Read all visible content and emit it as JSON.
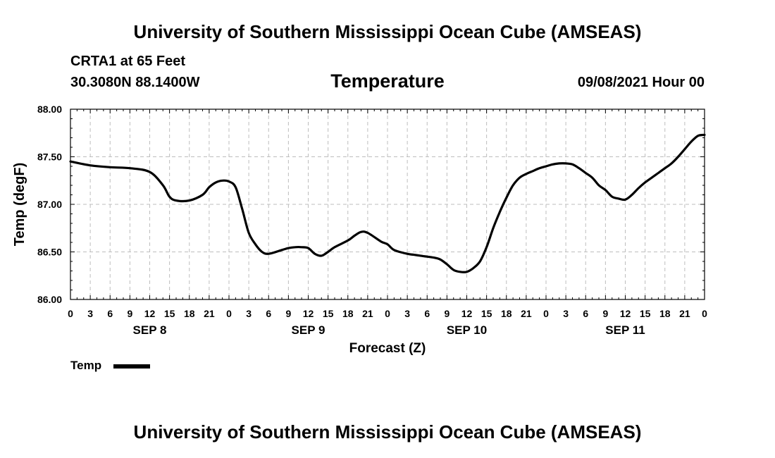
{
  "header": {
    "top_title": "University of Southern Mississippi Ocean Cube (AMSEAS)",
    "bottom_title": "University of Southern Mississippi Ocean Cube (AMSEAS)",
    "station": "CRTA1 at 65 Feet",
    "coords": "30.3080N  88.1400W",
    "datetime": "09/08/2021 Hour 00"
  },
  "chart_data": {
    "type": "line",
    "title": "Temperature",
    "xlabel": "Forecast (Z)",
    "ylabel": "Temp (degF)",
    "xlim": [
      0,
      96
    ],
    "ylim": [
      86.0,
      88.0
    ],
    "y_ticks": [
      86.0,
      86.5,
      87.0,
      87.5,
      88.0
    ],
    "y_tick_labels": [
      "86.00",
      "86.50",
      "87.00",
      "87.50",
      "88.00"
    ],
    "x_ticks": [
      0,
      3,
      6,
      9,
      12,
      15,
      18,
      21,
      24,
      27,
      30,
      33,
      36,
      39,
      42,
      45,
      48,
      51,
      54,
      57,
      60,
      63,
      66,
      69,
      72,
      75,
      78,
      81,
      84,
      87,
      90,
      93,
      96
    ],
    "x_tick_labels": [
      "0",
      "3",
      "6",
      "9",
      "12",
      "15",
      "18",
      "21",
      "0",
      "3",
      "6",
      "9",
      "12",
      "15",
      "18",
      "21",
      "0",
      "3",
      "6",
      "9",
      "12",
      "15",
      "18",
      "21",
      "0",
      "3",
      "6",
      "9",
      "12",
      "15",
      "18",
      "21",
      "0"
    ],
    "day_labels": [
      {
        "text": "SEP 8",
        "x": 12
      },
      {
        "text": "SEP 9",
        "x": 36
      },
      {
        "text": "SEP 10",
        "x": 60
      },
      {
        "text": "SEP 11",
        "x": 84
      }
    ],
    "grid": true,
    "series": [
      {
        "name": "Temp",
        "color": "#000000",
        "x": [
          0,
          3,
          6,
          9,
          12,
          14,
          15,
          16,
          18,
          20,
          21,
          22,
          23,
          24,
          25,
          26,
          27,
          28,
          29,
          30,
          32,
          33,
          34,
          35,
          36,
          37,
          38,
          39,
          40,
          42,
          43,
          44,
          45,
          47,
          48,
          49,
          51,
          52,
          53,
          54,
          55,
          56,
          57,
          58,
          59,
          60,
          61,
          62,
          63,
          64,
          65,
          66,
          67,
          68,
          69,
          70,
          71,
          72,
          73,
          74,
          75,
          76,
          77,
          78,
          79,
          80,
          81,
          82,
          83,
          84,
          85,
          86,
          87,
          88,
          89,
          90,
          91,
          92,
          93,
          94,
          95,
          96
        ],
        "values": [
          87.45,
          87.41,
          87.39,
          87.38,
          87.34,
          87.2,
          87.08,
          87.04,
          87.04,
          87.1,
          87.18,
          87.23,
          87.25,
          87.24,
          87.18,
          86.95,
          86.7,
          86.58,
          86.5,
          86.48,
          86.52,
          86.54,
          86.55,
          86.55,
          86.54,
          86.48,
          86.46,
          86.5,
          86.55,
          86.62,
          86.67,
          86.71,
          86.7,
          86.61,
          86.58,
          86.52,
          86.48,
          86.47,
          86.46,
          86.45,
          86.44,
          86.42,
          86.37,
          86.31,
          86.29,
          86.29,
          86.33,
          86.4,
          86.55,
          86.75,
          86.92,
          87.07,
          87.2,
          87.28,
          87.32,
          87.35,
          87.38,
          87.4,
          87.42,
          87.43,
          87.43,
          87.42,
          87.38,
          87.33,
          87.28,
          87.2,
          87.15,
          87.08,
          87.06,
          87.05,
          87.1,
          87.17,
          87.23,
          87.28,
          87.33,
          87.38,
          87.43,
          87.5,
          87.58,
          87.66,
          87.72,
          87.73
        ]
      }
    ],
    "legend": "bottom-left"
  }
}
